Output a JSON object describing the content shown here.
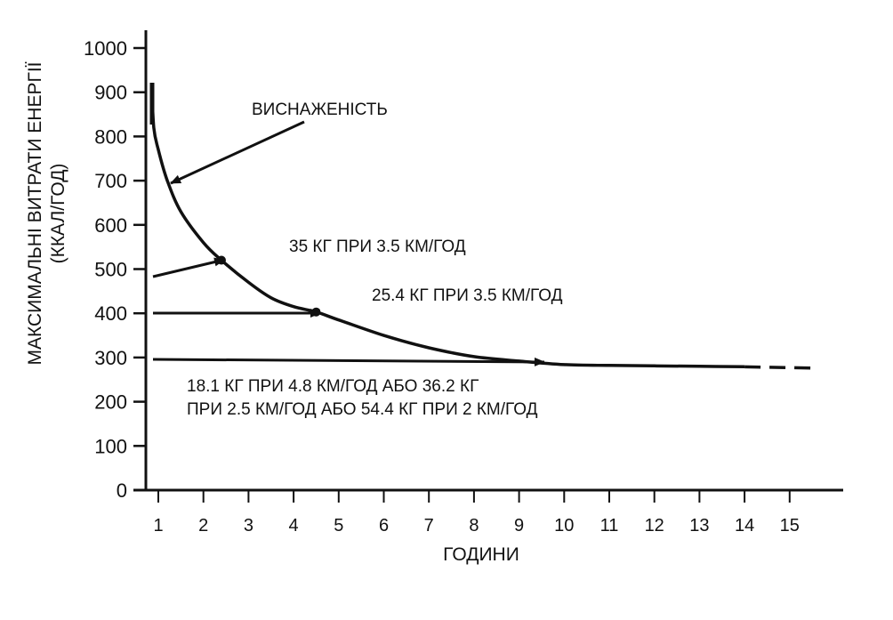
{
  "chart_data": {
    "type": "line",
    "title": "",
    "ylabel_line1": "МАКСИМАЛЬНІ ВИТРАТИ ЕНЕРГІЇ",
    "ylabel_line2": "(ККАЛ/ГОД)",
    "xlabel": "ГОДИНИ",
    "xlim": [
      0.8,
      15.5
    ],
    "ylim": [
      0,
      1000
    ],
    "x_ticks": [
      1,
      2,
      3,
      4,
      5,
      6,
      7,
      8,
      9,
      10,
      11,
      12,
      13,
      14,
      15
    ],
    "y_ticks": [
      0,
      100,
      200,
      300,
      400,
      500,
      600,
      700,
      800,
      900,
      1000
    ],
    "grid": false,
    "series": [
      {
        "values_xy": [
          [
            0.85,
            920
          ],
          [
            0.9,
            820
          ],
          [
            1.0,
            770
          ],
          [
            1.2,
            700
          ],
          [
            1.5,
            630
          ],
          [
            2.0,
            560
          ],
          [
            2.4,
            520
          ],
          [
            3.0,
            470
          ],
          [
            3.5,
            435
          ],
          [
            4.0,
            415
          ],
          [
            4.5,
            403
          ],
          [
            5.0,
            385
          ],
          [
            6.0,
            350
          ],
          [
            7.0,
            322
          ],
          [
            8.0,
            302
          ],
          [
            9.0,
            292
          ],
          [
            10.0,
            284
          ],
          [
            11.0,
            282
          ],
          [
            12.0,
            281
          ],
          [
            13.0,
            280
          ],
          [
            14.0,
            279
          ]
        ],
        "dashed_extension": [
          [
            14.0,
            279
          ],
          [
            15.5,
            276
          ]
        ]
      }
    ],
    "points": [
      {
        "x": 2.4,
        "y": 520
      },
      {
        "x": 4.5,
        "y": 403
      }
    ],
    "annotations": [
      {
        "id": "exhaustion",
        "text": "ВИСНАЖЕНІСТЬ"
      },
      {
        "id": "load35",
        "text": "35 КГ ПРИ 3.5 КМ/ГОД"
      },
      {
        "id": "load25",
        "text": "25.4 КГ ПРИ 3.5 КМ/ГОД"
      },
      {
        "id": "load18_line1",
        "text": "18.1 КГ ПРИ 4.8 КМ/ГОД АБО 36.2 КГ"
      },
      {
        "id": "load18_line2",
        "text": "ПРИ 2.5 КМ/ГОД АБО 54.4 КГ ПРИ 2 КМ/ГОД"
      }
    ],
    "colors": {
      "line": "#111111",
      "text": "#111111",
      "background": "#ffffff"
    }
  }
}
